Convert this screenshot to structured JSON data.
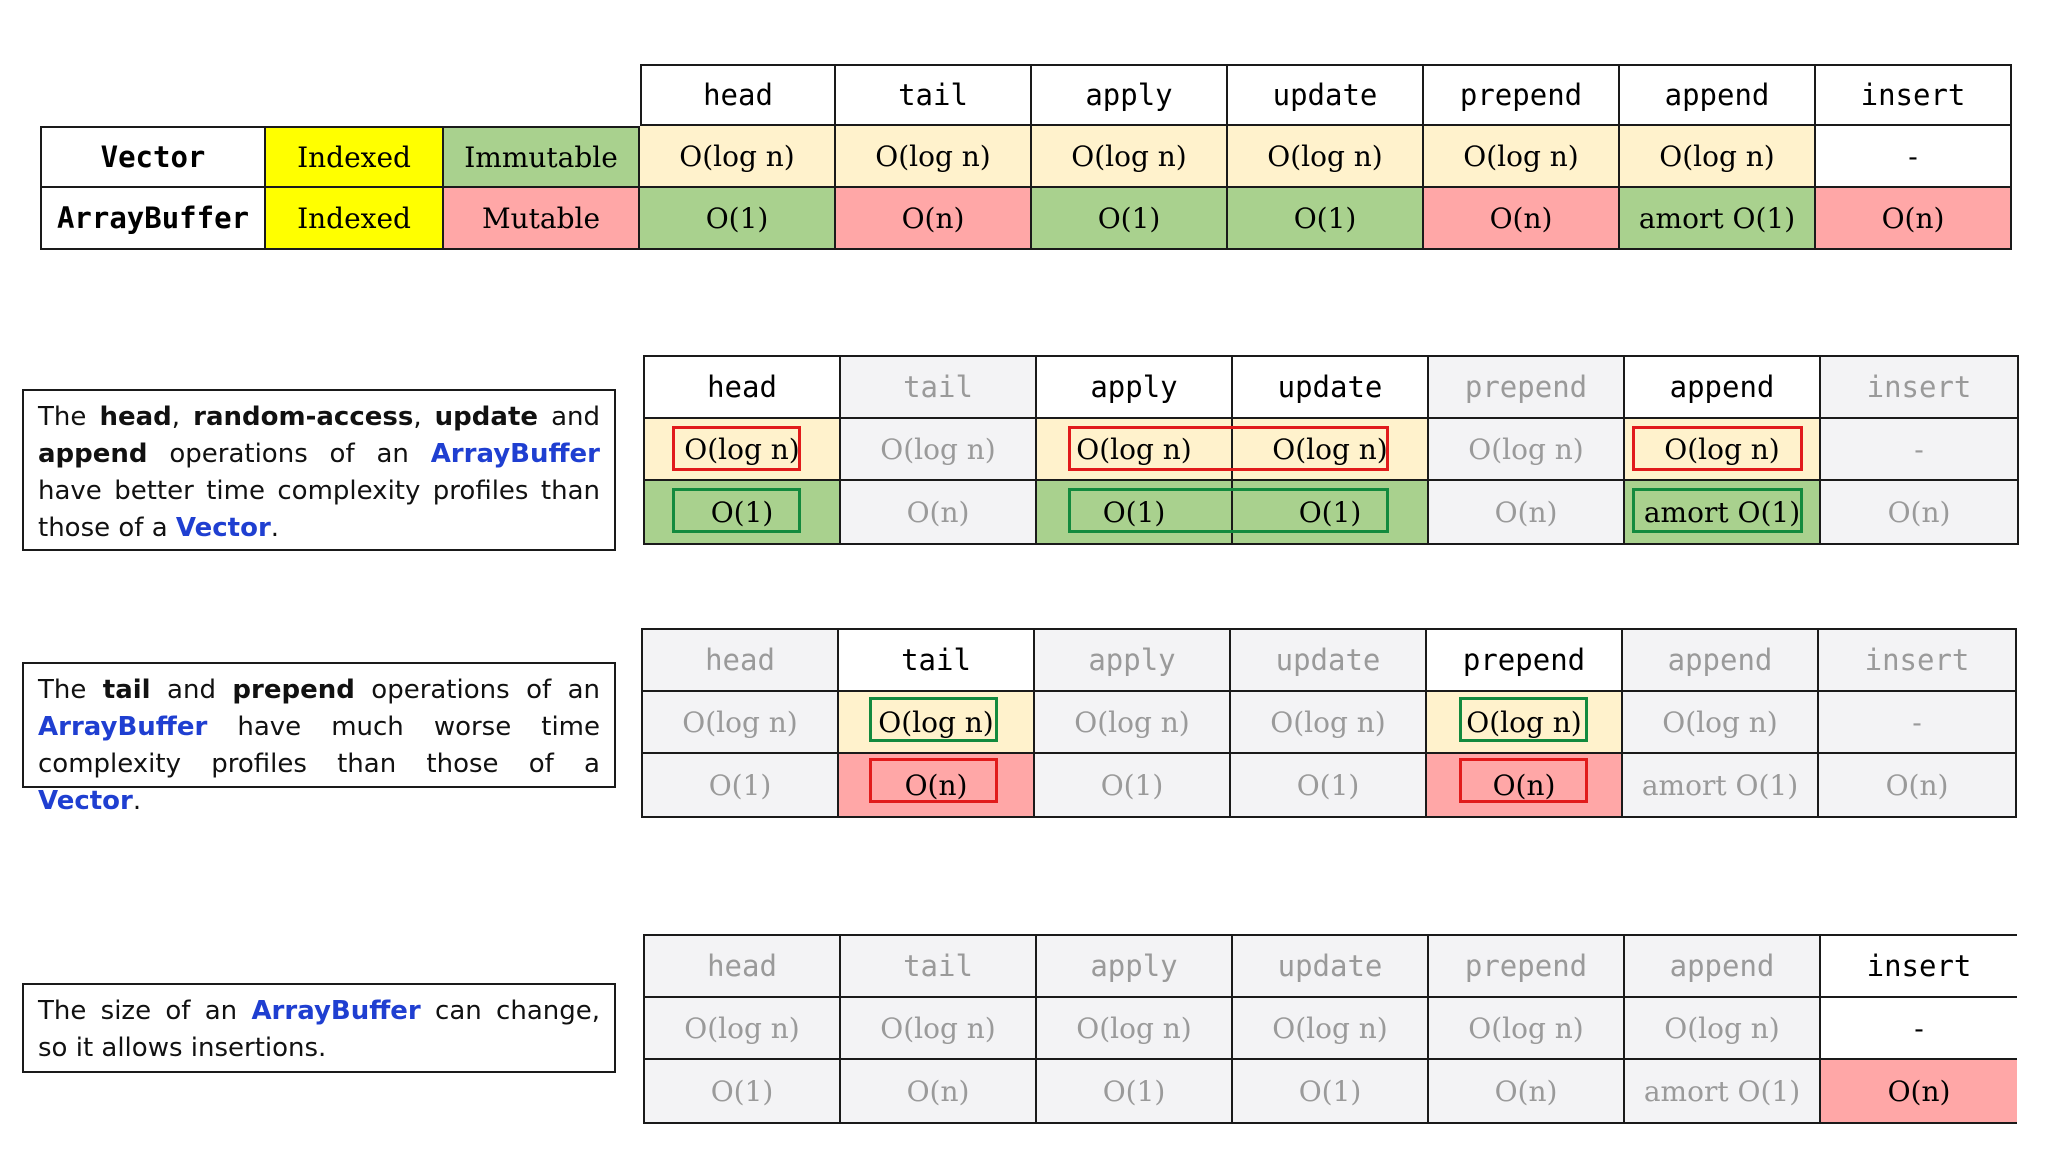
{
  "columns": [
    "head",
    "tail",
    "apply",
    "update",
    "prepend",
    "append",
    "insert"
  ],
  "rows": [
    {
      "name": "Vector",
      "access": "Indexed",
      "mutability": "Immutable",
      "ops": [
        "O(log n)",
        "O(log n)",
        "O(log n)",
        "O(log n)",
        "O(log n)",
        "O(log n)",
        "-"
      ]
    },
    {
      "name": "ArrayBuffer",
      "access": "Indexed",
      "mutability": "Mutable",
      "ops": [
        "O(1)",
        "O(n)",
        "O(1)",
        "O(1)",
        "O(n)",
        "amort O(1)",
        "O(n)"
      ]
    }
  ],
  "notes": {
    "better": {
      "p1": "The",
      "kw1": "head",
      "p2": ",",
      "kw2": "random-access",
      "p3": ",",
      "kw3": "update",
      "p4": "and",
      "kw4": "append",
      "p5": "operations of an",
      "name1": "ArrayBuffer",
      "p6": "have better time complexity profiles than those of a",
      "name2": "Vector",
      "p7": "."
    },
    "worse": {
      "p1": "The",
      "kw1": "tail",
      "p2": "and",
      "kw2": "prepend",
      "p3": "operations of an",
      "name1": "ArrayBuffer",
      "p4": "have much worse time complexity profiles than those of a",
      "name2": "Vector",
      "p5": "."
    },
    "size": {
      "p1": "The size of an",
      "name1": "ArrayBuffer",
      "p2": "can change, so it allows insertions."
    }
  },
  "colors": {
    "yellow": "#ffff00",
    "green": "#a9d18e",
    "red": "#ffa7a7",
    "cream": "#fff2cc",
    "highlight_red": "#e11b1b",
    "highlight_green": "#138a3e",
    "name_blue": "#1f3fd1"
  }
}
